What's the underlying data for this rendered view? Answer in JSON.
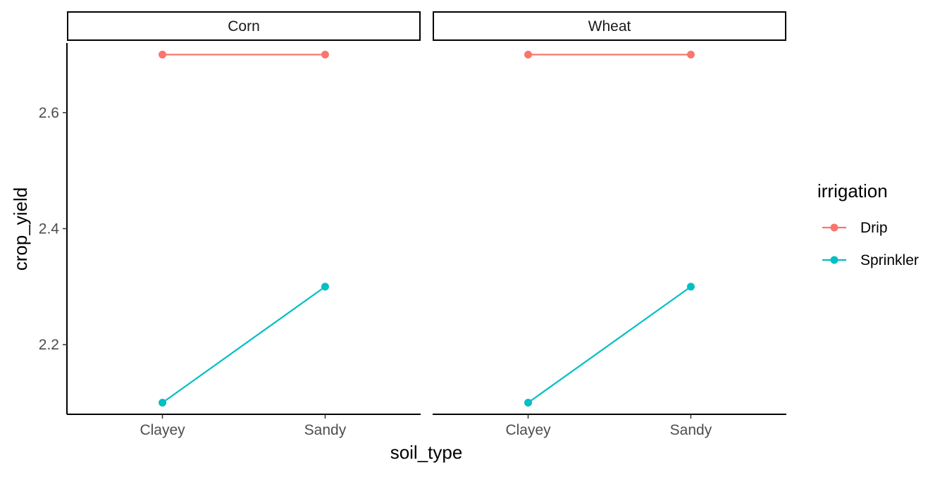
{
  "chart_data": {
    "type": "line",
    "facets": [
      "Corn",
      "Wheat"
    ],
    "categories": [
      "Clayey",
      "Sandy"
    ],
    "xlabel": "soil_type",
    "ylabel": "crop_yield",
    "ylim": [
      2.08,
      2.72
    ],
    "yticks": [
      2.2,
      2.4,
      2.6
    ],
    "ytick_labels": [
      "2.2",
      "2.4",
      "2.6"
    ],
    "legend": {
      "title": "irrigation",
      "placement": "right"
    },
    "series": [
      {
        "name": "Drip",
        "color": "#F8766D",
        "values": {
          "Corn": [
            2.7,
            2.7
          ],
          "Wheat": [
            2.7,
            2.7
          ]
        }
      },
      {
        "name": "Sprinkler",
        "color": "#00BFC4",
        "values": {
          "Corn": [
            2.1,
            2.3
          ],
          "Wheat": [
            2.1,
            2.3
          ]
        }
      }
    ],
    "grid": false
  }
}
